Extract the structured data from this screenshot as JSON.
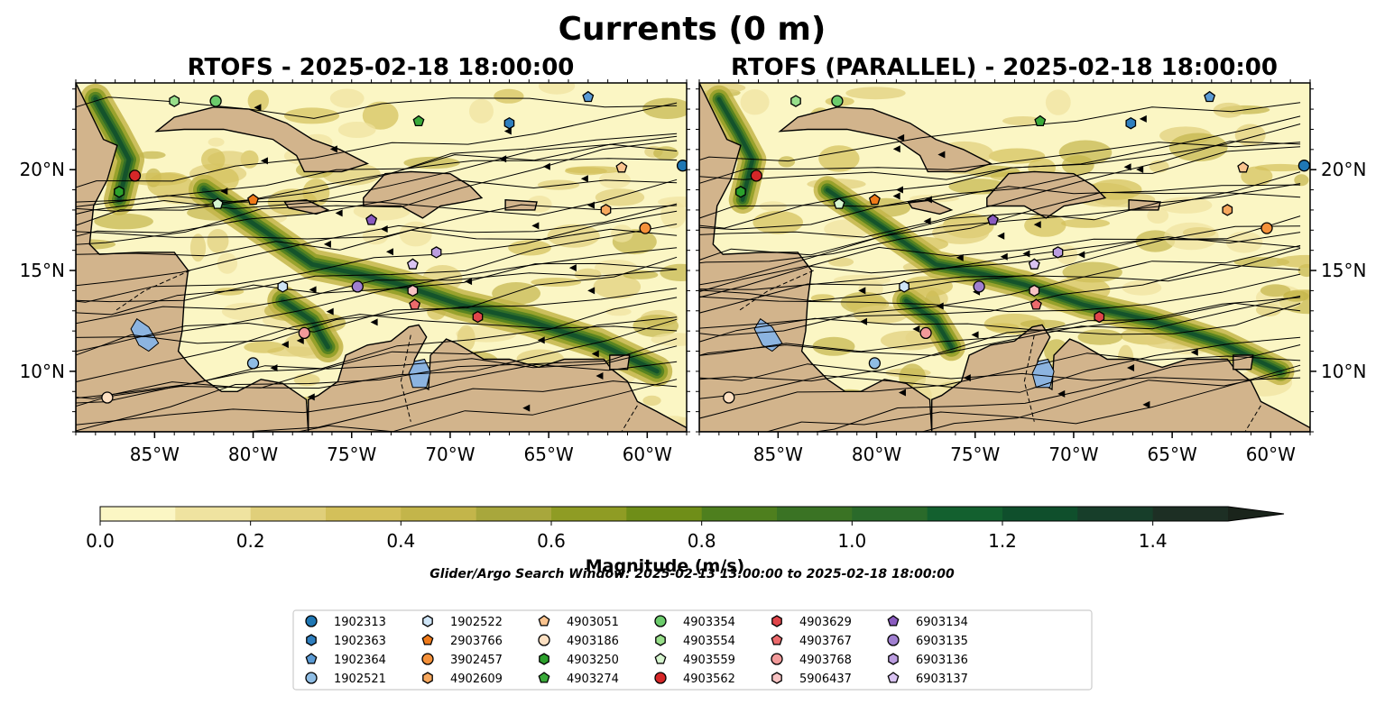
{
  "figure": {
    "title": "Currents (0 m)",
    "search_window": "Glider/Argo Search Window: 2025-02-13 13:00:00 to 2025-02-18 18:00:00"
  },
  "panels": [
    {
      "title": "RTOFS - 2025-02-18 18:00:00"
    },
    {
      "title": "RTOFS (PARALLEL) - 2025-02-18 18:00:00"
    }
  ],
  "map_extent": {
    "lon_min": -89,
    "lon_max": -58,
    "lat_min": 7,
    "lat_max": 24.3
  },
  "axes": {
    "x_ticks": [
      {
        "lon": -85,
        "label": "85°W"
      },
      {
        "lon": -80,
        "label": "80°W"
      },
      {
        "lon": -75,
        "label": "75°W"
      },
      {
        "lon": -70,
        "label": "70°W"
      },
      {
        "lon": -65,
        "label": "65°W"
      },
      {
        "lon": -60,
        "label": "60°W"
      }
    ],
    "y_ticks": [
      {
        "lat": 20,
        "label": "20°N"
      },
      {
        "lat": 15,
        "label": "15°N"
      },
      {
        "lat": 10,
        "label": "10°N"
      }
    ]
  },
  "colorbar": {
    "label": "Magnitude (m/s)",
    "min": 0,
    "max": 1.5,
    "ticks": [
      "0.0",
      "0.2",
      "0.4",
      "0.6",
      "0.8",
      "1.0",
      "1.2",
      "1.4"
    ],
    "tick_values": [
      0,
      0.2,
      0.4,
      0.6,
      0.8,
      1.0,
      1.2,
      1.4
    ],
    "colors": [
      "#fbf6c4",
      "#efe3a0",
      "#e0cf7a",
      "#d3c05a",
      "#c3b54a",
      "#a8a73c",
      "#8f9c24",
      "#6f8e18",
      "#4e7f1e",
      "#3a7324",
      "#2a6a2a",
      "#13602f",
      "#0f4f2c",
      "#173e2a",
      "#1d2f24",
      "#1a241b"
    ]
  },
  "legend": {
    "items": [
      {
        "id": "1902313",
        "marker": "circle",
        "color": "#1f77b4"
      },
      {
        "id": "1902363",
        "marker": "hexagon",
        "color": "#2f7fbf"
      },
      {
        "id": "1902364",
        "marker": "pentagon",
        "color": "#5b9bd5"
      },
      {
        "id": "1902521",
        "marker": "circle",
        "color": "#8fbde4"
      },
      {
        "id": "1902522",
        "marker": "hexagon",
        "color": "#cfe5f7"
      },
      {
        "id": "2903766",
        "marker": "pentagon",
        "color": "#ef7a1a"
      },
      {
        "id": "3902457",
        "marker": "circle",
        "color": "#f5913a"
      },
      {
        "id": "4902609",
        "marker": "hexagon",
        "color": "#f7a85e"
      },
      {
        "id": "4903051",
        "marker": "pentagon",
        "color": "#fbc48f"
      },
      {
        "id": "4903186",
        "marker": "circle",
        "color": "#fde0c2"
      },
      {
        "id": "4903250",
        "marker": "hexagon",
        "color": "#2ca02c"
      },
      {
        "id": "4903274",
        "marker": "pentagon",
        "color": "#3aaa3a"
      },
      {
        "id": "4903354",
        "marker": "circle",
        "color": "#6ccc6c"
      },
      {
        "id": "4903554",
        "marker": "hexagon",
        "color": "#98df8a"
      },
      {
        "id": "4903559",
        "marker": "pentagon",
        "color": "#d6f5cf"
      },
      {
        "id": "4903562",
        "marker": "circle",
        "color": "#d62728"
      },
      {
        "id": "4903629",
        "marker": "hexagon",
        "color": "#e0454a"
      },
      {
        "id": "4903767",
        "marker": "pentagon",
        "color": "#ec6a6c"
      },
      {
        "id": "4903768",
        "marker": "circle",
        "color": "#f29a9a"
      },
      {
        "id": "5906437",
        "marker": "hexagon",
        "color": "#f8c3c3"
      },
      {
        "id": "6903134",
        "marker": "pentagon",
        "color": "#8a5bbf"
      },
      {
        "id": "6903135",
        "marker": "circle",
        "color": "#a07fd0"
      },
      {
        "id": "6903136",
        "marker": "hexagon",
        "color": "#bb9de0"
      },
      {
        "id": "6903137",
        "marker": "pentagon",
        "color": "#d9c3f2"
      }
    ]
  },
  "floats": [
    {
      "id": "1902313",
      "lon": -58.2,
      "lat": 20.2
    },
    {
      "id": "1902363",
      "lon": -67.0,
      "lat": 22.3
    },
    {
      "id": "1902364",
      "lon": -63.0,
      "lat": 23.6
    },
    {
      "id": "1902521",
      "lon": -80.0,
      "lat": 10.4
    },
    {
      "id": "1902522",
      "lon": -78.5,
      "lat": 14.2
    },
    {
      "id": "2903766",
      "lon": -80.0,
      "lat": 18.5
    },
    {
      "id": "3902457",
      "lon": -60.1,
      "lat": 17.1
    },
    {
      "id": "4902609",
      "lon": -62.1,
      "lat": 18.0
    },
    {
      "id": "4903051",
      "lon": -61.3,
      "lat": 20.1
    },
    {
      "id": "4903186",
      "lon": -87.4,
      "lat": 8.7
    },
    {
      "id": "4903250",
      "lon": -86.8,
      "lat": 18.9
    },
    {
      "id": "4903274",
      "lon": -71.6,
      "lat": 22.4
    },
    {
      "id": "4903354",
      "lon": -81.9,
      "lat": 23.4
    },
    {
      "id": "4903554",
      "lon": -84.0,
      "lat": 23.4
    },
    {
      "id": "4903559",
      "lon": -81.8,
      "lat": 18.3
    },
    {
      "id": "4903562",
      "lon": -86.0,
      "lat": 19.7
    },
    {
      "id": "4903629",
      "lon": -68.6,
      "lat": 12.7
    },
    {
      "id": "4903767",
      "lon": -71.8,
      "lat": 13.3
    },
    {
      "id": "4903768",
      "lon": -77.4,
      "lat": 11.9
    },
    {
      "id": "5906437",
      "lon": -71.9,
      "lat": 14.0
    },
    {
      "id": "6903134",
      "lon": -74.0,
      "lat": 17.5
    },
    {
      "id": "6903135",
      "lon": -74.7,
      "lat": 14.2
    },
    {
      "id": "6903136",
      "lon": -70.7,
      "lat": 15.9
    },
    {
      "id": "6903137",
      "lon": -71.9,
      "lat": 15.3
    }
  ]
}
